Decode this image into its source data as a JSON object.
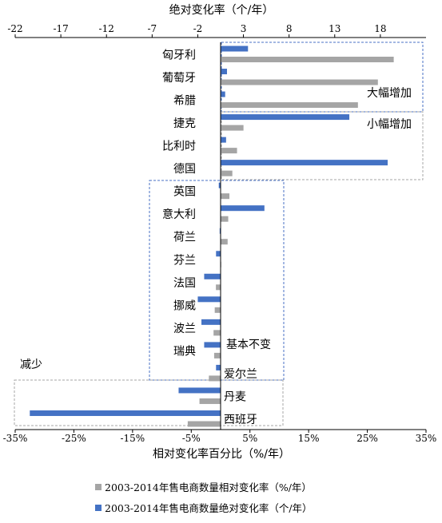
{
  "chart_data": {
    "type": "bar",
    "orientation": "horizontal",
    "top_axis_title": "绝对变化率（个/年）",
    "bottom_axis_title": "相对变化率百分比（%/年）",
    "top_axis": {
      "range": [
        -22,
        23
      ],
      "ticks": [
        -22,
        -17,
        -12,
        -7,
        -2,
        3,
        8,
        13,
        18
      ]
    },
    "bottom_axis": {
      "range": [
        -35,
        35
      ],
      "ticks": [
        -35,
        -25,
        -15,
        -5,
        5,
        15,
        25,
        35
      ],
      "tick_labels": [
        "-35%",
        "-25%",
        "-15%",
        "-5%",
        "5%",
        "15%",
        "25%",
        "35%"
      ]
    },
    "categories": [
      "匈牙利",
      "葡萄牙",
      "希腊",
      "捷克",
      "比利时",
      "德国",
      "英国",
      "意大利",
      "荷兰",
      "芬兰",
      "法国",
      "挪威",
      "波兰",
      "瑞典",
      "爱尔兰",
      "丹麦",
      "西班牙"
    ],
    "series": [
      {
        "name": "2003-2014年售电商数量绝对变化率（个/年）",
        "axis": "top",
        "color": "#4472c4",
        "values": [
          3.5,
          1.2,
          1.0,
          14.6,
          1.1,
          18.8,
          0.3,
          5.3,
          0.4,
          0.0,
          -1.3,
          -2.0,
          -1.6,
          -1.3,
          0.0,
          -4.1,
          -20.4
        ]
      },
      {
        "name": "2003-2014年售电商数量相对变化率（%/年）",
        "axis": "bottom",
        "color": "#a5a5a5",
        "values": [
          29.5,
          26.8,
          23.4,
          3.9,
          2.8,
          2.0,
          1.5,
          1.3,
          1.2,
          0.0,
          -0.8,
          -1.0,
          -1.2,
          -1.1,
          -2.0,
          -3.6,
          -5.6
        ]
      }
    ],
    "group_labels": {
      "large_increase": "大幅增加",
      "small_increase": "小幅增加",
      "unchanged": "基本不变",
      "decrease": "减少"
    },
    "legend_position": "bottom",
    "grid": false
  }
}
